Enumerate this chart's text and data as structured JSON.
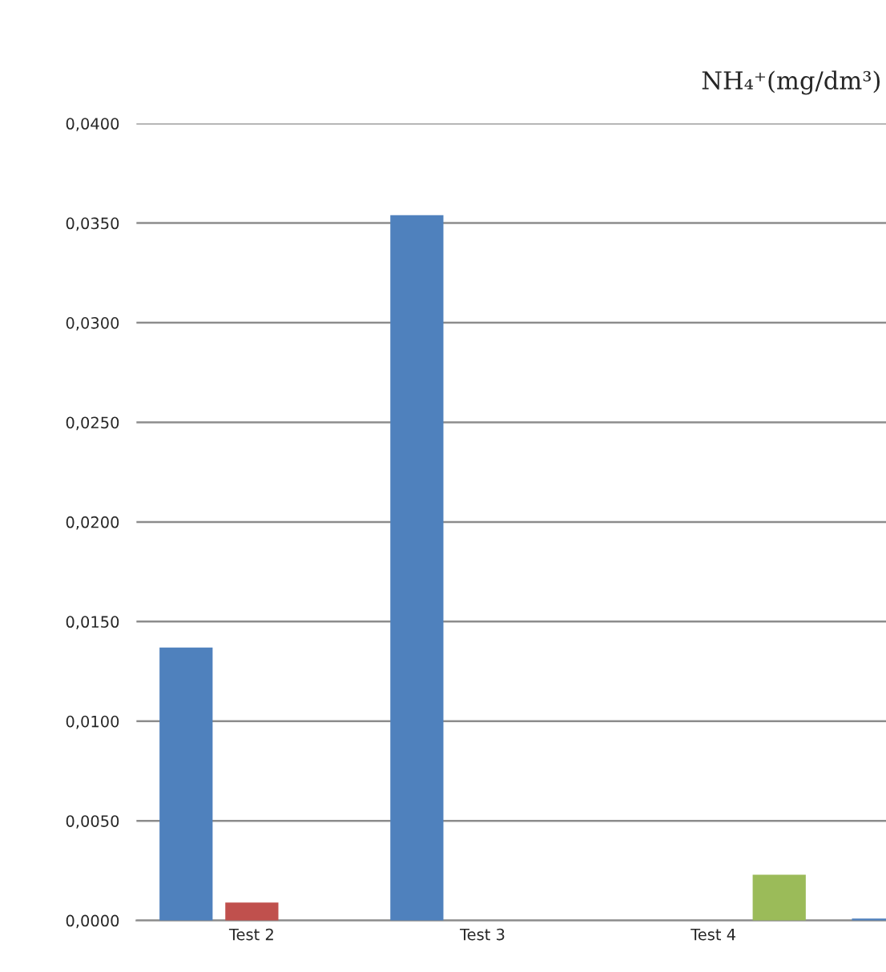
{
  "chart_data": {
    "type": "bar",
    "title": "NH₄⁺(mg/dm³)",
    "categories": [
      "Test 2",
      "Test 3",
      "Test 4",
      null
    ],
    "series": [
      {
        "color": "#4f81bd",
        "values": [
          0.0137,
          0.0354,
          0,
          0.0001
        ]
      },
      {
        "color": "#c0504d",
        "values": [
          0.0009,
          0,
          0,
          null
        ]
      },
      {
        "color": "#9bbb59",
        "values": [
          0,
          0,
          0.0023,
          null
        ]
      }
    ],
    "ylim": [
      0,
      0.04
    ],
    "yticks": [
      {
        "value": 0,
        "label": "0,0000"
      },
      {
        "value": 0.005,
        "label": "0,0050"
      },
      {
        "value": 0.01,
        "label": "0,0100"
      },
      {
        "value": 0.015,
        "label": "0,0150"
      },
      {
        "value": 0.02,
        "label": "0,0200"
      },
      {
        "value": 0.025,
        "label": "0,0250"
      },
      {
        "value": 0.03,
        "label": "0,0300"
      },
      {
        "value": 0.035,
        "label": "0,0350"
      },
      {
        "value": 0.04,
        "label": "0,0400"
      }
    ],
    "grid": "y"
  }
}
